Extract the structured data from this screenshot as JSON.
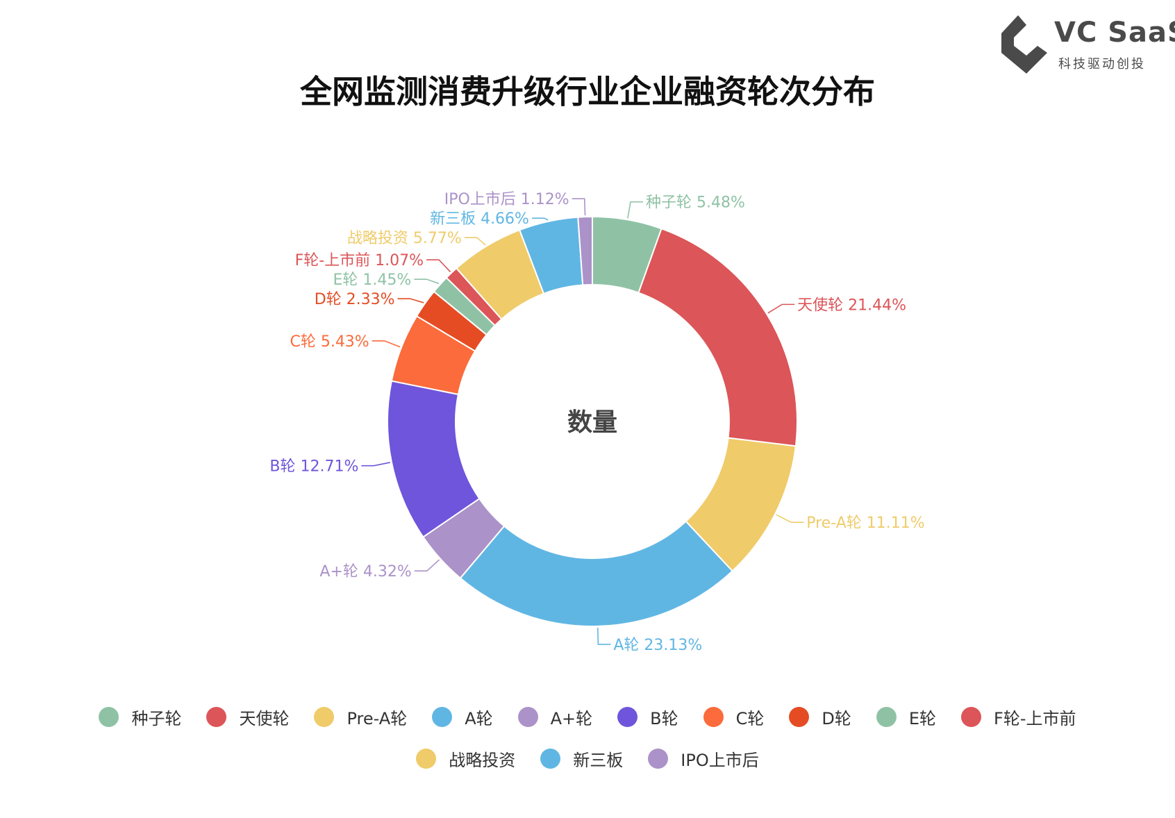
{
  "branding": {
    "name": "VC SaaS",
    "tagline": "科技驱动创投",
    "logo_icon": "vc-saas-logo-icon",
    "logo_color": "#4a4a4a"
  },
  "chart_data": {
    "type": "pie",
    "style": "donut",
    "title": "全网监测消费升级行业企业融资轮次分布",
    "center_label": "数量",
    "unit": "%",
    "legend_position": "bottom",
    "slices": [
      {
        "label": "种子轮",
        "value": 5.48,
        "display": "种子轮 5.48%",
        "color": "#8fc2a5"
      },
      {
        "label": "天使轮",
        "value": 21.44,
        "display": "天使轮 21.44%",
        "color": "#dc5558"
      },
      {
        "label": "Pre-A轮",
        "value": 11.11,
        "display": "Pre-A轮 11.11%",
        "color": "#efcb6a"
      },
      {
        "label": "A轮",
        "value": 23.13,
        "display": "A轮 23.13%",
        "color": "#60b6e3"
      },
      {
        "label": "A+轮",
        "value": 4.32,
        "display": "A+轮 4.32%",
        "color": "#ab92c8"
      },
      {
        "label": "B轮",
        "value": 12.71,
        "display": "B轮 12.71%",
        "color": "#6f55db"
      },
      {
        "label": "C轮",
        "value": 5.43,
        "display": "C轮 5.43%",
        "color": "#fb6b3b"
      },
      {
        "label": "D轮",
        "value": 2.33,
        "display": "D轮 2.33%",
        "color": "#e54c24"
      },
      {
        "label": "E轮",
        "value": 1.45,
        "display": "E轮 1.45%",
        "color": "#8fc2a5"
      },
      {
        "label": "F轮-上市前",
        "value": 1.07,
        "display": "F轮-上市前 1.07%",
        "color": "#dc5558"
      },
      {
        "label": "战略投资",
        "value": 5.77,
        "display": "战略投资 5.77%",
        "color": "#efcb6a"
      },
      {
        "label": "新三板",
        "value": 4.66,
        "display": "新三板 4.66%",
        "color": "#60b6e3"
      },
      {
        "label": "IPO上市后",
        "value": 1.12,
        "display": "IPO上市后 1.12%",
        "color": "#ab92c8"
      }
    ]
  }
}
